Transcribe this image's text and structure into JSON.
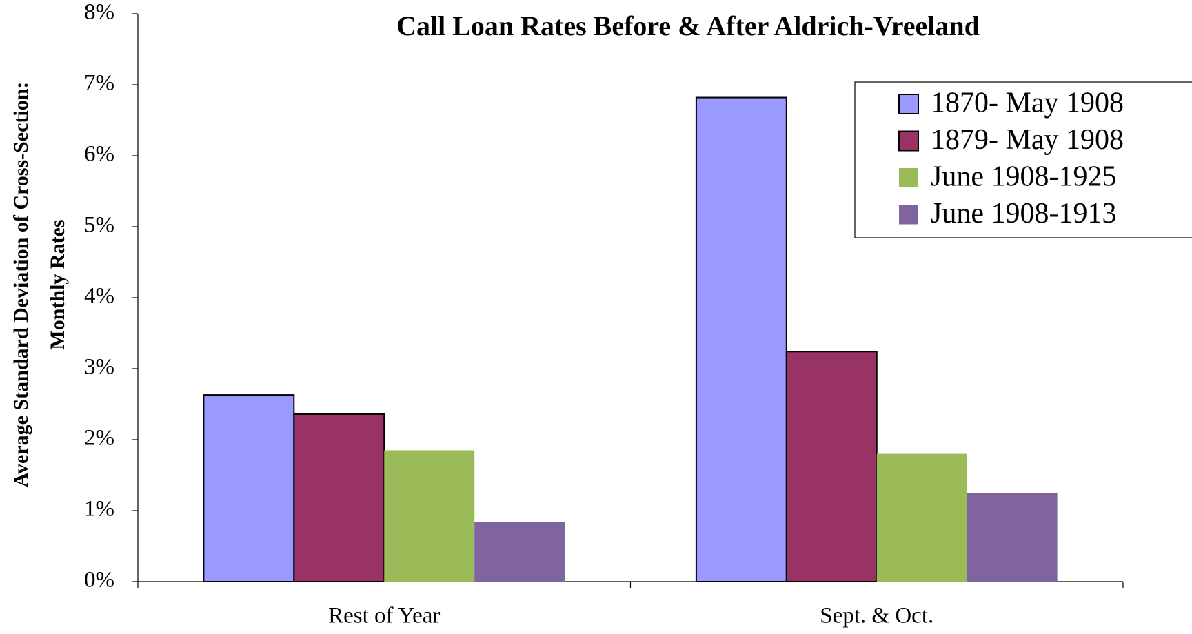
{
  "chart_data": {
    "type": "bar",
    "title": "Call Loan Rates Before & After Aldrich-Vreeland",
    "y_label": [
      "Average Standard Deviation of Cross-Section:",
      "Monthly Rates"
    ],
    "categories": [
      "Rest of Year",
      "Sept. & Oct."
    ],
    "series": [
      {
        "name": "1870- May 1908",
        "color": "#9999ff",
        "edgecolor": "#000000",
        "values": [
          2.63,
          6.82
        ]
      },
      {
        "name": "1879- May 1908",
        "color": "#993366",
        "edgecolor": "#000000",
        "values": [
          2.36,
          3.24
        ]
      },
      {
        "name": "June 1908-1925",
        "color": "#9bbb59",
        "values": [
          1.85,
          1.8
        ]
      },
      {
        "name": "June 1908-1913",
        "color": "#8064a2",
        "values": [
          0.84,
          1.25
        ]
      }
    ],
    "ylim": [
      0,
      8
    ],
    "yticks": [
      {
        "value": 0,
        "label": "0%"
      },
      {
        "value": 1,
        "label": "1%"
      },
      {
        "value": 2,
        "label": "2%"
      },
      {
        "value": 3,
        "label": "3%"
      },
      {
        "value": 4,
        "label": "4%"
      },
      {
        "value": 5,
        "label": "5%"
      },
      {
        "value": 6,
        "label": "6%"
      },
      {
        "value": 7,
        "label": "7%"
      },
      {
        "value": 8,
        "label": "8%"
      }
    ],
    "grid": false,
    "legend": "upper right"
  }
}
